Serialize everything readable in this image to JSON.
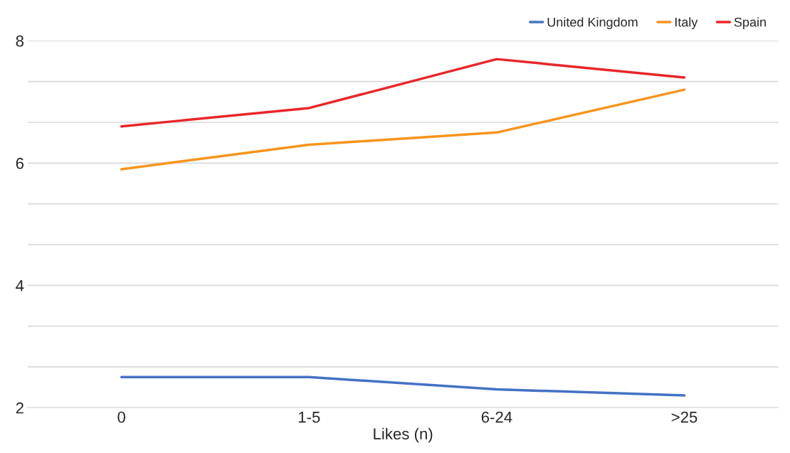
{
  "chart_data": {
    "type": "line",
    "xlabel": "Likes (n)",
    "categories": [
      "0",
      "1-5",
      "6-24",
      ">25"
    ],
    "series": [
      {
        "name": "United Kingdom",
        "color": "#4472c4",
        "values": [
          2.5,
          2.5,
          2.3,
          2.2
        ]
      },
      {
        "name": "Italy",
        "color": "#f7941d",
        "values": [
          5.9,
          6.3,
          6.5,
          7.2
        ]
      },
      {
        "name": "Spain",
        "color": "#e8262a",
        "values": [
          6.6,
          6.9,
          7.7,
          7.4
        ]
      }
    ],
    "ylim": [
      2,
      8
    ],
    "yticks": [
      2,
      {
        "value": 2.667,
        "label": null
      },
      {
        "value": 3.333,
        "label": null
      },
      4,
      {
        "value": 4.667,
        "label": null
      },
      {
        "value": 5.333,
        "label": null
      },
      6,
      {
        "value": 6.667,
        "label": null
      },
      {
        "value": 7.333,
        "label": null
      },
      8
    ],
    "grid": "y",
    "legend": "top right",
    "marker": "none",
    "line_style": "solid"
  }
}
